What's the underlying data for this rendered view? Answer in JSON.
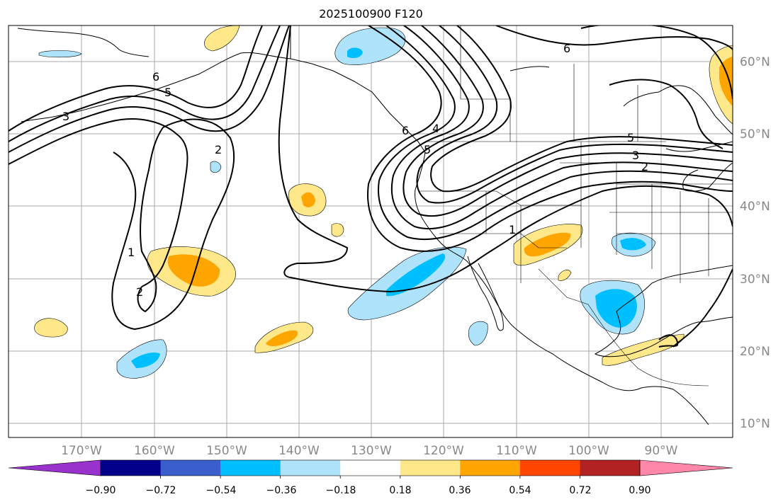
{
  "title": "2025100900 F120",
  "map": {
    "lon_labels": [
      "170°W",
      "160°W",
      "150°W",
      "140°W",
      "130°W",
      "120°W",
      "110°W",
      "100°W",
      "90°W"
    ],
    "lat_labels": [
      "60°N",
      "50°N",
      "40°N",
      "30°N",
      "20°N",
      "10°N"
    ],
    "contour_labels": [
      "6",
      "5",
      "3",
      "2",
      "1",
      "2",
      "6",
      "5",
      "4",
      "6",
      "5",
      "3",
      "2",
      "1"
    ],
    "colors": {
      "fill_pos_light": "#ffe88a",
      "fill_pos_mid": "#ffa500",
      "fill_neg_light": "#aee3fb",
      "fill_neg_mid": "#00bfff",
      "grid": "#aaaaaa",
      "contour": "#000000"
    }
  },
  "colorbar": {
    "tick_labels": [
      "−0.90",
      "−0.72",
      "−0.54",
      "−0.36",
      "−0.18",
      "0.18",
      "0.36",
      "0.54",
      "0.72",
      "0.90"
    ],
    "colors": [
      "#9932cc",
      "#00008b",
      "#3a5fcd",
      "#00bfff",
      "#aee3fb",
      "#ffffff",
      "#ffe88a",
      "#ffa500",
      "#ff4500",
      "#b22222",
      "#ff88aa"
    ]
  }
}
